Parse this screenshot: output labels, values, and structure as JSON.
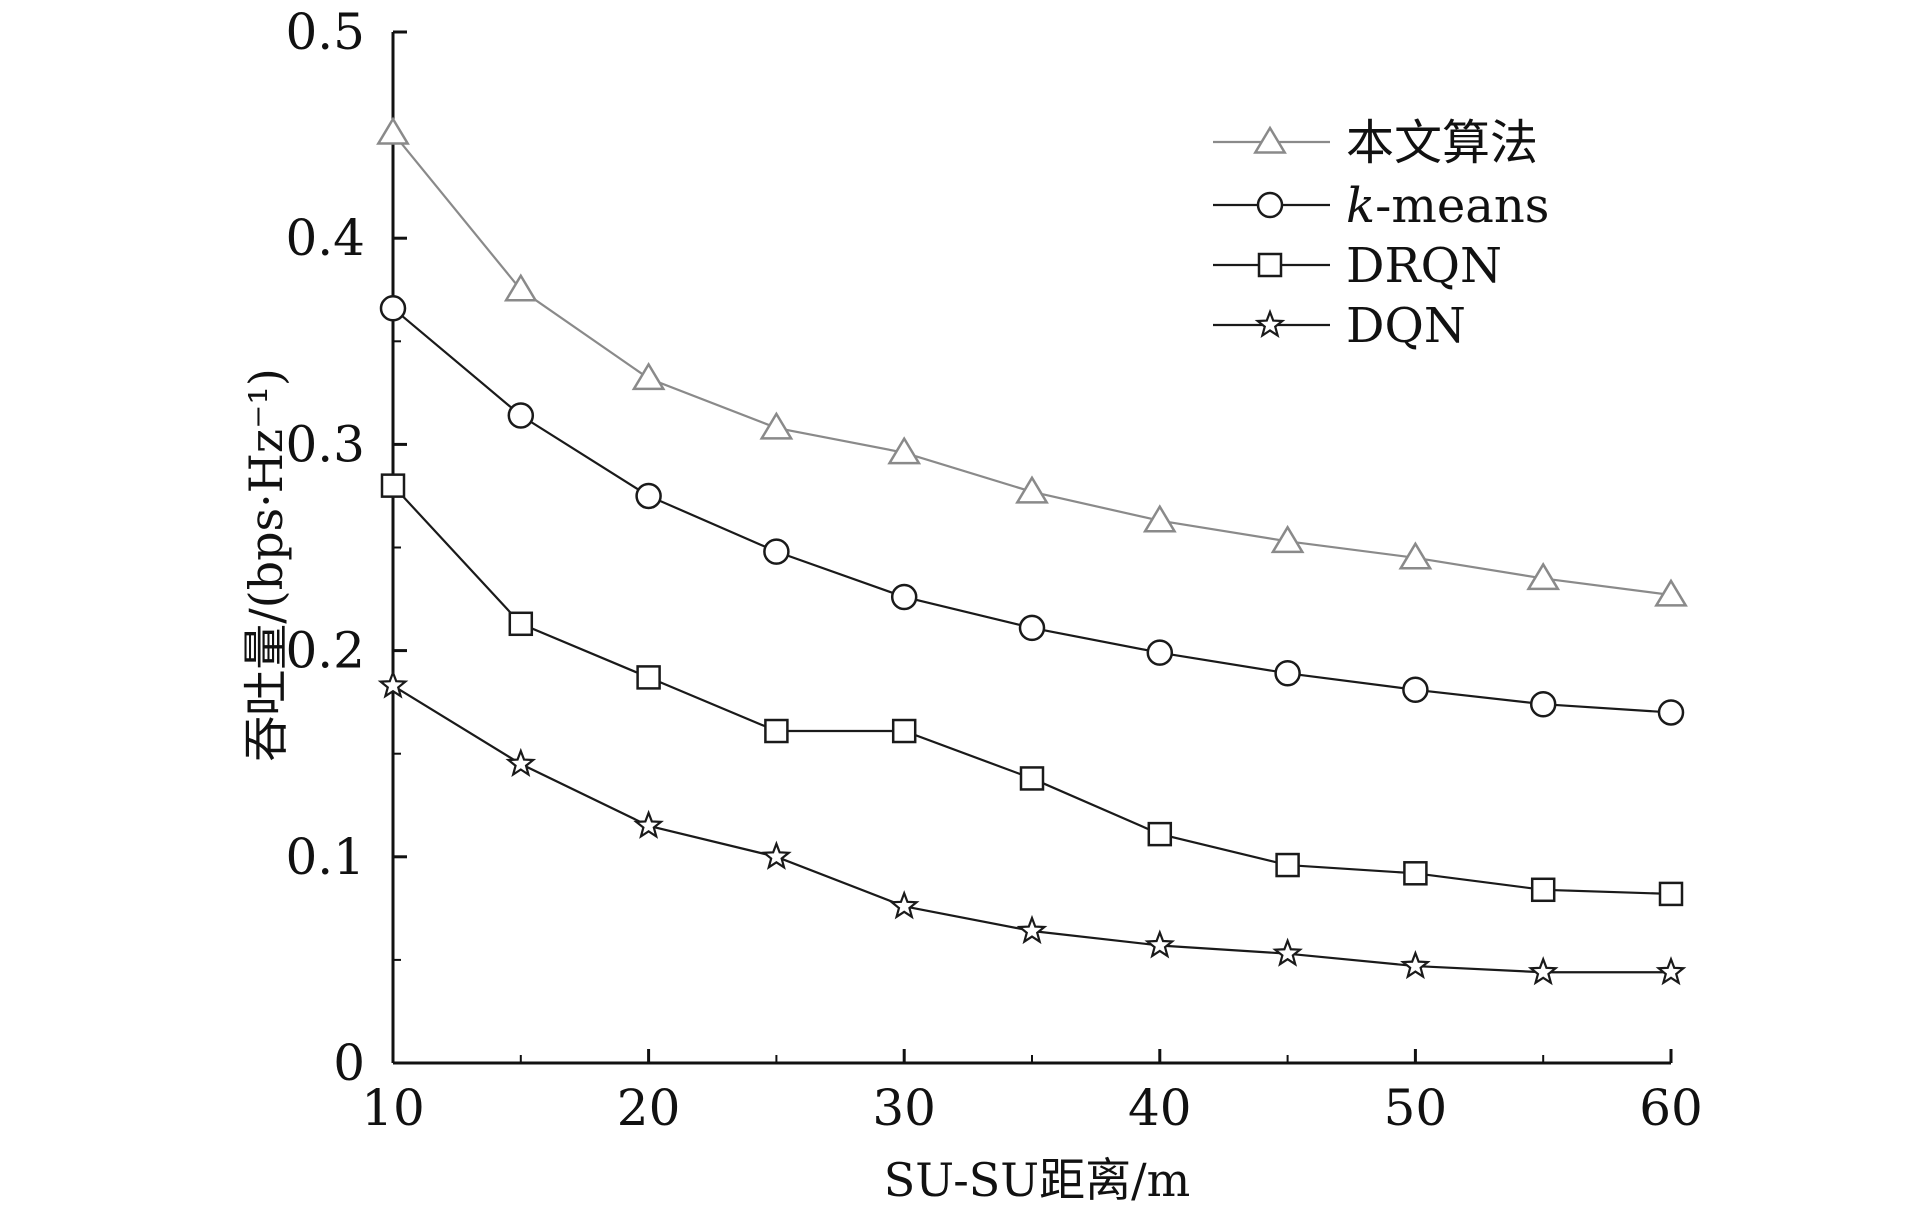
{
  "chart_data": {
    "type": "line",
    "xlabel": "SU-SU距离/m",
    "ylabel": "吞吐量/(bps·Hz⁻¹)",
    "x": [
      10,
      15,
      20,
      25,
      30,
      35,
      40,
      45,
      50,
      55,
      60
    ],
    "xlim": [
      10,
      60
    ],
    "ylim": [
      0,
      0.5
    ],
    "x_ticks": [
      "10",
      "20",
      "30",
      "40",
      "50",
      "60"
    ],
    "y_ticks": [
      "0",
      "0.1",
      "0.2",
      "0.3",
      "0.4",
      "0.5"
    ],
    "grid": false,
    "legend_position": "top-right",
    "series": [
      {
        "name": "本文算法",
        "marker": "triangle",
        "color": "#8a8a8a",
        "values": [
          0.451,
          0.375,
          0.332,
          0.308,
          0.296,
          0.277,
          0.263,
          0.253,
          0.245,
          0.235,
          0.227
        ]
      },
      {
        "name": "k-means",
        "marker": "circle",
        "color": "#1a1a1a",
        "values": [
          0.366,
          0.314,
          0.275,
          0.248,
          0.226,
          0.211,
          0.199,
          0.189,
          0.181,
          0.174,
          0.17
        ]
      },
      {
        "name": "DRQN",
        "marker": "square",
        "color": "#1a1a1a",
        "values": [
          0.28,
          0.213,
          0.187,
          0.161,
          0.161,
          0.138,
          0.111,
          0.096,
          0.092,
          0.084,
          0.082
        ]
      },
      {
        "name": "DQN",
        "marker": "star",
        "color": "#1a1a1a",
        "values": [
          0.183,
          0.145,
          0.115,
          0.1,
          0.076,
          0.064,
          0.057,
          0.053,
          0.047,
          0.044,
          0.044
        ]
      }
    ]
  }
}
